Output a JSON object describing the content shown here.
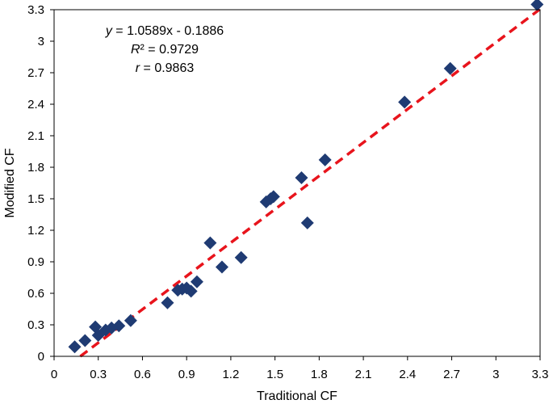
{
  "chart_data": {
    "type": "scatter",
    "xlabel": "Traditional CF",
    "ylabel": "Modified CF",
    "xlim": [
      0,
      3.3
    ],
    "ylim": [
      0,
      3.3
    ],
    "xticks": [
      "0",
      "0.3",
      "0.6",
      "0.9",
      "1.2",
      "1.5",
      "1.8",
      "2.1",
      "2.4",
      "2.7",
      "3",
      "3.3"
    ],
    "yticks": [
      "0",
      "0.3",
      "0.6",
      "0.9",
      "1.2",
      "1.5",
      "1.8",
      "2.1",
      "2.4",
      "2.7",
      "3",
      "3.3"
    ],
    "grid": false,
    "marker_color": "#1f3b73",
    "trendline_color": "#e8141c",
    "points": [
      {
        "x": 0.14,
        "y": 0.09
      },
      {
        "x": 0.21,
        "y": 0.15
      },
      {
        "x": 0.28,
        "y": 0.28
      },
      {
        "x": 0.3,
        "y": 0.2
      },
      {
        "x": 0.35,
        "y": 0.25
      },
      {
        "x": 0.39,
        "y": 0.27
      },
      {
        "x": 0.44,
        "y": 0.29
      },
      {
        "x": 0.52,
        "y": 0.34
      },
      {
        "x": 0.77,
        "y": 0.51
      },
      {
        "x": 0.84,
        "y": 0.63
      },
      {
        "x": 0.87,
        "y": 0.64
      },
      {
        "x": 0.9,
        "y": 0.65
      },
      {
        "x": 0.93,
        "y": 0.62
      },
      {
        "x": 0.97,
        "y": 0.71
      },
      {
        "x": 1.06,
        "y": 1.08
      },
      {
        "x": 1.14,
        "y": 0.85
      },
      {
        "x": 1.27,
        "y": 0.94
      },
      {
        "x": 1.44,
        "y": 1.47
      },
      {
        "x": 1.47,
        "y": 1.5
      },
      {
        "x": 1.49,
        "y": 1.52
      },
      {
        "x": 1.68,
        "y": 1.7
      },
      {
        "x": 1.72,
        "y": 1.27
      },
      {
        "x": 1.84,
        "y": 1.87
      },
      {
        "x": 2.38,
        "y": 2.42
      },
      {
        "x": 2.69,
        "y": 2.74
      },
      {
        "x": 3.28,
        "y": 3.35
      }
    ],
    "trendline": {
      "slope": 1.0589,
      "intercept": -0.1886
    },
    "annotations": {
      "equation": "y = 1.0589x - 0.1886",
      "r2": "R² = 0.9729",
      "r": "r = 0.9863"
    }
  }
}
